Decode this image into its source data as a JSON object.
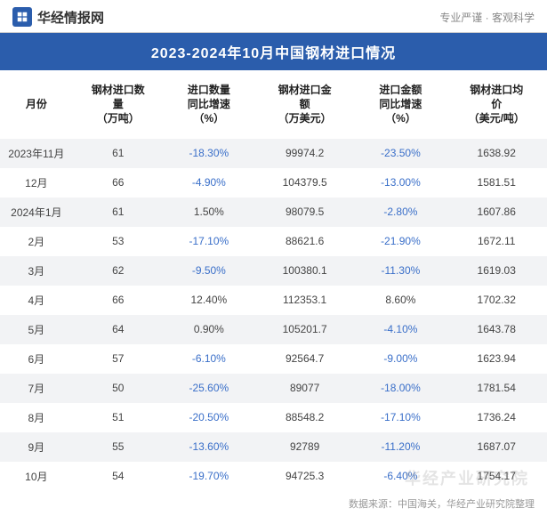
{
  "brand": {
    "name": "华经情报网",
    "tagline": "专业严谨 · 客观科学"
  },
  "title": "2023-2024年10月中国钢材进口情况",
  "columns": [
    "月份",
    "钢材进口数\n量\n（万吨）",
    "进口数量\n同比增速\n（%）",
    "钢材进口金\n额\n（万美元）",
    "进口金额\n同比增速\n（%）",
    "钢材进口均\n价\n（美元/吨）"
  ],
  "rows": [
    {
      "month": "2023年11月",
      "qty": "61",
      "qty_yoy": "-18.30%",
      "qty_neg": true,
      "amt": "99974.2",
      "amt_yoy": "-23.50%",
      "amt_neg": true,
      "price": "1638.92",
      "stripe": true
    },
    {
      "month": "12月",
      "qty": "66",
      "qty_yoy": "-4.90%",
      "qty_neg": true,
      "amt": "104379.5",
      "amt_yoy": "-13.00%",
      "amt_neg": true,
      "price": "1581.51",
      "stripe": false
    },
    {
      "month": "2024年1月",
      "qty": "61",
      "qty_yoy": "1.50%",
      "qty_neg": false,
      "amt": "98079.5",
      "amt_yoy": "-2.80%",
      "amt_neg": true,
      "price": "1607.86",
      "stripe": true
    },
    {
      "month": "2月",
      "qty": "53",
      "qty_yoy": "-17.10%",
      "qty_neg": true,
      "amt": "88621.6",
      "amt_yoy": "-21.90%",
      "amt_neg": true,
      "price": "1672.11",
      "stripe": false
    },
    {
      "month": "3月",
      "qty": "62",
      "qty_yoy": "-9.50%",
      "qty_neg": true,
      "amt": "100380.1",
      "amt_yoy": "-11.30%",
      "amt_neg": true,
      "price": "1619.03",
      "stripe": true
    },
    {
      "month": "4月",
      "qty": "66",
      "qty_yoy": "12.40%",
      "qty_neg": false,
      "amt": "112353.1",
      "amt_yoy": "8.60%",
      "amt_neg": false,
      "price": "1702.32",
      "stripe": false
    },
    {
      "month": "5月",
      "qty": "64",
      "qty_yoy": "0.90%",
      "qty_neg": false,
      "amt": "105201.7",
      "amt_yoy": "-4.10%",
      "amt_neg": true,
      "price": "1643.78",
      "stripe": true
    },
    {
      "month": "6月",
      "qty": "57",
      "qty_yoy": "-6.10%",
      "qty_neg": true,
      "amt": "92564.7",
      "amt_yoy": "-9.00%",
      "amt_neg": true,
      "price": "1623.94",
      "stripe": false
    },
    {
      "month": "7月",
      "qty": "50",
      "qty_yoy": "-25.60%",
      "qty_neg": true,
      "amt": "89077",
      "amt_yoy": "-18.00%",
      "amt_neg": true,
      "price": "1781.54",
      "stripe": true
    },
    {
      "month": "8月",
      "qty": "51",
      "qty_yoy": "-20.50%",
      "qty_neg": true,
      "amt": "88548.2",
      "amt_yoy": "-17.10%",
      "amt_neg": true,
      "price": "1736.24",
      "stripe": false
    },
    {
      "month": "9月",
      "qty": "55",
      "qty_yoy": "-13.60%",
      "qty_neg": true,
      "amt": "92789",
      "amt_yoy": "-11.20%",
      "amt_neg": true,
      "price": "1687.07",
      "stripe": true
    },
    {
      "month": "10月",
      "qty": "54",
      "qty_yoy": "-19.70%",
      "qty_neg": true,
      "amt": "94725.3",
      "amt_yoy": "-6.40%",
      "amt_neg": true,
      "price": "1754.17",
      "stripe": false
    }
  ],
  "source": "数据来源：中国海关，华经产业研究院整理",
  "watermark": "华经产业研究院",
  "colors": {
    "header_bg": "#2b5dac",
    "negative": "#3a6fc9",
    "stripe": "#f2f3f5"
  }
}
